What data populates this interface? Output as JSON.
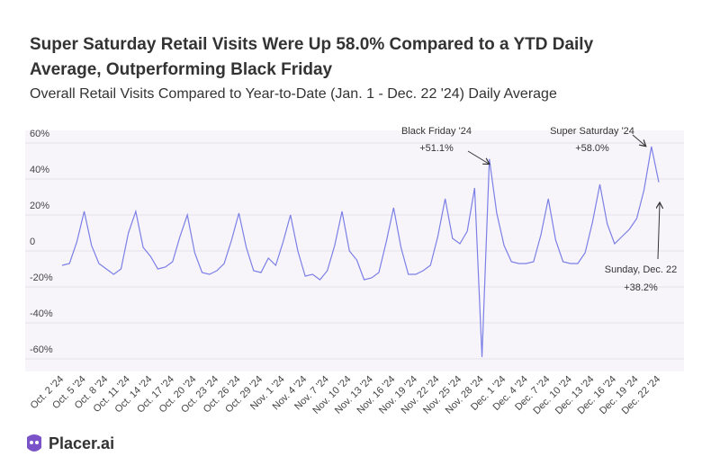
{
  "chart_data": {
    "type": "line",
    "title": "Super Saturday Retail Visits Were Up 58.0% Compared to a YTD Daily",
    "title_line2": "Average, Outperforming Black Friday",
    "subtitle": "Overall Retail Visits Compared to Year-to-Date (Jan. 1 - Dec. 22 '24) Daily Average",
    "categories": [
      "Oct. 2 '24",
      null,
      null,
      "Oct. 5 '24",
      null,
      null,
      "Oct. 8 '24",
      null,
      null,
      "Oct. 11 '24",
      null,
      null,
      "Oct. 14 '24",
      null,
      null,
      "Oct. 17 '24",
      null,
      null,
      "Oct. 20 '24",
      null,
      null,
      "Oct. 23 '24",
      null,
      null,
      "Oct. 26 '24",
      null,
      null,
      "Oct. 29 '24",
      null,
      null,
      "Nov. 1 '24",
      null,
      null,
      "Nov. 4 '24",
      null,
      null,
      "Nov. 7 '24",
      null,
      null,
      "Nov. 10 '24",
      null,
      null,
      "Nov. 13 '24",
      null,
      null,
      "Nov. 16 '24",
      null,
      null,
      "Nov. 19 '24",
      null,
      null,
      "Nov. 22 '24",
      null,
      null,
      "Nov. 25 '24",
      null,
      null,
      "Nov. 28 '24",
      null,
      null,
      "Dec. 1 '24",
      null,
      null,
      "Dec. 4 '24",
      null,
      null,
      "Dec. 7 '24",
      null,
      null,
      "Dec. 10 '24",
      null,
      null,
      "Dec. 13 '24",
      null,
      null,
      "Dec. 16 '24",
      null,
      null,
      "Dec. 19 '24",
      null,
      null,
      "Dec. 22 '24"
    ],
    "series": [
      {
        "color": "#7b7fe6",
        "values": [
          -8,
          -7,
          5,
          22,
          3,
          -7,
          -10,
          -13,
          -10,
          10,
          22,
          2,
          -3,
          -10,
          -9,
          -6,
          8,
          20,
          -1,
          -12,
          -13,
          -11,
          -7,
          6,
          21,
          2,
          -11,
          -12,
          -4,
          -8,
          5,
          20,
          0,
          -14,
          -13,
          -16,
          -11,
          3,
          22,
          0,
          -5,
          -16,
          -15,
          -12,
          5,
          24,
          2,
          -13,
          -13,
          -11,
          -8,
          8,
          29,
          7,
          4,
          11,
          35,
          -59,
          51.1,
          21,
          3,
          -6,
          -7,
          -7,
          -6,
          9,
          29,
          6,
          -6,
          -7,
          -7,
          -1,
          16,
          37,
          15,
          4,
          8,
          12,
          18,
          34,
          58.0,
          38.2
        ]
      }
    ],
    "ylim": [
      -67,
      67
    ],
    "yticks": [
      {
        "value": 60,
        "label": "60%"
      },
      {
        "value": 40,
        "label": "40%"
      },
      {
        "value": 20,
        "label": "20%"
      },
      0,
      {
        "value": -20,
        "label": "-20%"
      },
      {
        "value": -40,
        "label": "-40%"
      },
      {
        "value": -60,
        "label": "-60%"
      }
    ],
    "grid": true,
    "annotations": [
      {
        "text": "Black Friday '24",
        "value_text": "+51.1%"
      },
      {
        "text": "Super Saturday '24",
        "value_text": "+58.0%"
      },
      {
        "text": "Sunday, Dec. 22",
        "value_text": "+38.2%"
      }
    ],
    "brand": "Placer.ai"
  }
}
